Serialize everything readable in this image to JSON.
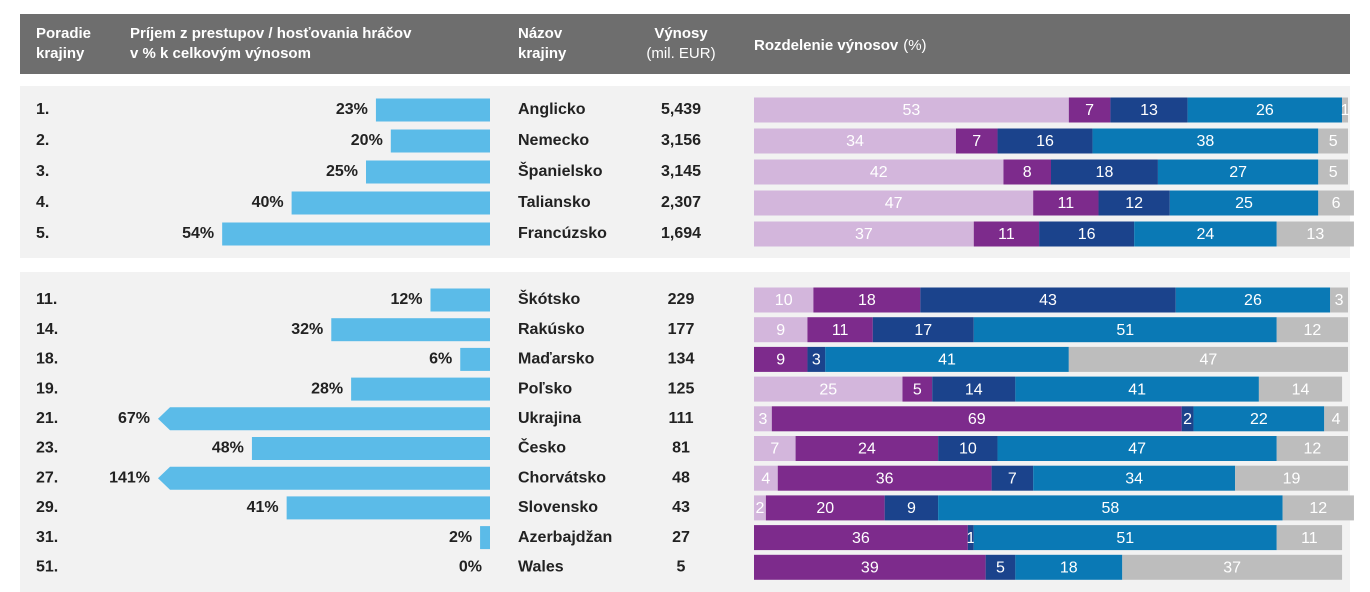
{
  "header": {
    "rank": [
      "Poradie",
      "krajiny"
    ],
    "transfer": [
      "Príjem z prestupov / hosťovania hráčov",
      "v % k celkovým výnosom"
    ],
    "country": [
      "Názov",
      "krajiny"
    ],
    "revenue": [
      "Výnosy",
      "(mil. EUR)"
    ],
    "shares": [
      "Rozdelenie výnosov",
      "(%)"
    ]
  },
  "segment_colors": [
    "#d3b6dc",
    "#7d2b8c",
    "#1b438c",
    "#0a79b5",
    "#bdbdbd"
  ],
  "transfer_color": "#5bbbe8",
  "groups": [
    {
      "rows": [
        {
          "rank": "1.",
          "transfer": 23,
          "transfer_label": "23%",
          "country": "Anglicko",
          "revenue": "5,439",
          "shares": [
            53,
            7,
            13,
            26,
            1
          ]
        },
        {
          "rank": "2.",
          "transfer": 20,
          "transfer_label": "20%",
          "country": "Nemecko",
          "revenue": "3,156",
          "shares": [
            34,
            7,
            16,
            38,
            5
          ]
        },
        {
          "rank": "3.",
          "transfer": 25,
          "transfer_label": "25%",
          "country": "Španielsko",
          "revenue": "3,145",
          "shares": [
            42,
            8,
            18,
            27,
            5
          ]
        },
        {
          "rank": "4.",
          "transfer": 40,
          "transfer_label": "40%",
          "country": "Taliansko",
          "revenue": "2,307",
          "shares": [
            47,
            11,
            12,
            25,
            6
          ]
        },
        {
          "rank": "5.",
          "transfer": 54,
          "transfer_label": "54%",
          "country": "Francúzsko",
          "revenue": "1,694",
          "shares": [
            37,
            11,
            16,
            24,
            13
          ]
        }
      ]
    },
    {
      "rows": [
        {
          "rank": "11.",
          "transfer": 12,
          "transfer_label": "12%",
          "country": "Škótsko",
          "revenue": "229",
          "shares": [
            10,
            18,
            43,
            26,
            3
          ]
        },
        {
          "rank": "14.",
          "transfer": 32,
          "transfer_label": "32%",
          "country": "Rakúsko",
          "revenue": "177",
          "shares": [
            9,
            11,
            17,
            51,
            12
          ]
        },
        {
          "rank": "18.",
          "transfer": 6,
          "transfer_label": "6%",
          "country": "Maďarsko",
          "revenue": "134",
          "shares": [
            null,
            9,
            3,
            41,
            47
          ]
        },
        {
          "rank": "19.",
          "transfer": 28,
          "transfer_label": "28%",
          "country": "Poľsko",
          "revenue": "125",
          "shares": [
            25,
            5,
            14,
            41,
            14
          ]
        },
        {
          "rank": "21.",
          "transfer": 67,
          "transfer_label": "67%",
          "country": "Ukrajina",
          "revenue": "111",
          "shares": [
            3,
            69,
            2,
            22,
            4
          ]
        },
        {
          "rank": "23.",
          "transfer": 48,
          "transfer_label": "48%",
          "country": "Česko",
          "revenue": "81",
          "shares": [
            7,
            24,
            10,
            47,
            12
          ]
        },
        {
          "rank": "27.",
          "transfer": 141,
          "transfer_label": "141%",
          "country": "Chorvátsko",
          "revenue": "48",
          "shares": [
            4,
            36,
            7,
            34,
            19
          ]
        },
        {
          "rank": "29.",
          "transfer": 41,
          "transfer_label": "41%",
          "country": "Slovensko",
          "revenue": "43",
          "shares": [
            2,
            20,
            9,
            58,
            12
          ]
        },
        {
          "rank": "31.",
          "transfer": 2,
          "transfer_label": "2%",
          "country": "Azerbajdžan",
          "revenue": "27",
          "shares": [
            null,
            36,
            1,
            51,
            11
          ]
        },
        {
          "rank": "51.",
          "transfer": 0,
          "transfer_label": "0%",
          "country": "Wales",
          "revenue": "5",
          "shares": [
            null,
            39,
            5,
            18,
            37
          ]
        }
      ]
    }
  ]
}
